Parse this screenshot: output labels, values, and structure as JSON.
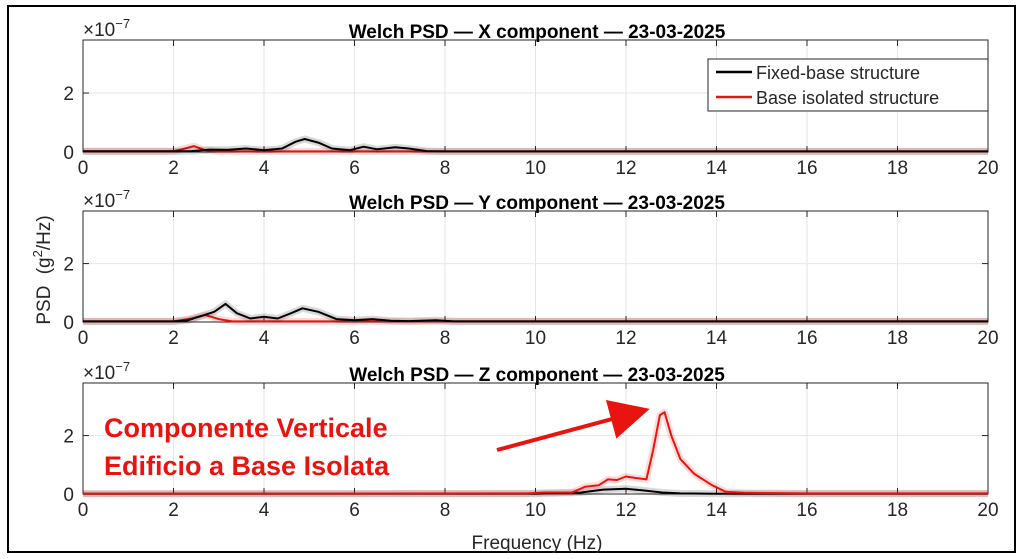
{
  "chart_data": [
    {
      "type": "line",
      "title": "Welch PSD — X component — 23-03-2025",
      "exponent_label": "×10",
      "exponent_power": "−7",
      "xlim": [
        0,
        20
      ],
      "ylim": [
        0,
        3.8
      ],
      "x_ticks": [
        "0",
        "2",
        "4",
        "6",
        "8",
        "10",
        "12",
        "14",
        "16",
        "18",
        "20"
      ],
      "y_ticks": [
        "0",
        "2"
      ],
      "grid": true,
      "legend": "top-right",
      "series": [
        {
          "name": "Fixed-base structure",
          "color": "#000000",
          "points": [
            [
              0,
              0.02
            ],
            [
              2,
              0.02
            ],
            [
              2.4,
              0.03
            ],
            [
              2.8,
              0.08
            ],
            [
              3.2,
              0.07
            ],
            [
              3.6,
              0.12
            ],
            [
              4,
              0.06
            ],
            [
              4.4,
              0.12
            ],
            [
              4.7,
              0.35
            ],
            [
              4.9,
              0.44
            ],
            [
              5.2,
              0.32
            ],
            [
              5.5,
              0.12
            ],
            [
              5.9,
              0.06
            ],
            [
              6.2,
              0.18
            ],
            [
              6.5,
              0.09
            ],
            [
              6.9,
              0.16
            ],
            [
              7.2,
              0.12
            ],
            [
              7.6,
              0.03
            ],
            [
              8,
              0.02
            ],
            [
              10,
              0.02
            ],
            [
              14,
              0.02
            ],
            [
              20,
              0.02
            ]
          ]
        },
        {
          "name": "Base isolated structure",
          "color": "#e8140f",
          "points": [
            [
              0,
              0.03
            ],
            [
              2,
              0.03
            ],
            [
              2.2,
              0.1
            ],
            [
              2.45,
              0.2
            ],
            [
              2.7,
              0.06
            ],
            [
              3,
              0.02
            ],
            [
              20,
              0.02
            ]
          ]
        }
      ]
    },
    {
      "type": "line",
      "title": "Welch PSD — Y component — 23-03-2025",
      "exponent_label": "×10",
      "exponent_power": "−7",
      "xlim": [
        0,
        20
      ],
      "ylim": [
        0,
        3.8
      ],
      "x_ticks": [
        "0",
        "2",
        "4",
        "6",
        "8",
        "10",
        "12",
        "14",
        "16",
        "18",
        "20"
      ],
      "y_ticks": [
        "0",
        "2"
      ],
      "grid": true,
      "series": [
        {
          "name": "Fixed-base structure",
          "color": "#000000",
          "points": [
            [
              0,
              0.02
            ],
            [
              2,
              0.02
            ],
            [
              2.3,
              0.05
            ],
            [
              2.6,
              0.2
            ],
            [
              2.9,
              0.35
            ],
            [
              3.15,
              0.62
            ],
            [
              3.4,
              0.3
            ],
            [
              3.7,
              0.12
            ],
            [
              4,
              0.18
            ],
            [
              4.3,
              0.12
            ],
            [
              4.6,
              0.3
            ],
            [
              4.85,
              0.47
            ],
            [
              5.2,
              0.35
            ],
            [
              5.6,
              0.1
            ],
            [
              6,
              0.06
            ],
            [
              6.4,
              0.1
            ],
            [
              6.8,
              0.04
            ],
            [
              7.2,
              0.03
            ],
            [
              7.8,
              0.06
            ],
            [
              8.2,
              0.02
            ],
            [
              20,
              0.02
            ]
          ]
        },
        {
          "name": "Base isolated structure",
          "color": "#e8140f",
          "points": [
            [
              0,
              0.02
            ],
            [
              2,
              0.02
            ],
            [
              2.4,
              0.12
            ],
            [
              2.7,
              0.24
            ],
            [
              3,
              0.1
            ],
            [
              3.3,
              0.02
            ],
            [
              20,
              0.02
            ]
          ]
        }
      ]
    },
    {
      "type": "line",
      "title": "Welch PSD — Z component — 23-03-2025",
      "exponent_label": "×10",
      "exponent_power": "−7",
      "xlim": [
        0,
        20
      ],
      "ylim": [
        0,
        3.8
      ],
      "x_ticks": [
        "0",
        "2",
        "4",
        "6",
        "8",
        "10",
        "12",
        "14",
        "16",
        "18",
        "20"
      ],
      "y_ticks": [
        "0",
        "2"
      ],
      "grid": true,
      "xlabel": "Frequency (Hz)",
      "series": [
        {
          "name": "Fixed-base structure",
          "color": "#000000",
          "points": [
            [
              0,
              0.01
            ],
            [
              10,
              0.01
            ],
            [
              11,
              0.05
            ],
            [
              11.5,
              0.15
            ],
            [
              12,
              0.18
            ],
            [
              12.4,
              0.12
            ],
            [
              12.8,
              0.05
            ],
            [
              13.2,
              0.02
            ],
            [
              14,
              0.01
            ],
            [
              20,
              0.01
            ]
          ]
        },
        {
          "name": "Base isolated structure",
          "color": "#e8140f",
          "points": [
            [
              0,
              0.01
            ],
            [
              9.8,
              0.02
            ],
            [
              10.2,
              0.05
            ],
            [
              10.8,
              0.05
            ],
            [
              11.1,
              0.25
            ],
            [
              11.4,
              0.3
            ],
            [
              11.6,
              0.5
            ],
            [
              11.8,
              0.48
            ],
            [
              12,
              0.6
            ],
            [
              12.2,
              0.55
            ],
            [
              12.45,
              0.5
            ],
            [
              12.6,
              1.5
            ],
            [
              12.75,
              2.7
            ],
            [
              12.85,
              2.8
            ],
            [
              13,
              2.0
            ],
            [
              13.2,
              1.2
            ],
            [
              13.5,
              0.7
            ],
            [
              13.9,
              0.3
            ],
            [
              14.2,
              0.08
            ],
            [
              14.6,
              0.04
            ],
            [
              16,
              0.02
            ],
            [
              20,
              0.02
            ]
          ]
        }
      ]
    }
  ],
  "ylabel_main": "PSD",
  "ylabel_unit_open": "(g",
  "ylabel_unit_sup": "2",
  "ylabel_unit_close": "/Hz)",
  "annotation": {
    "line1": "Componente Verticale",
    "line2": "Edificio a Base Isolata",
    "color": "#e8140f"
  }
}
